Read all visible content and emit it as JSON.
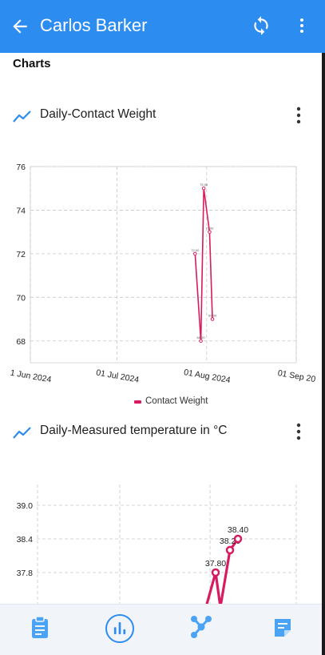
{
  "header": {
    "title": "Carlos Barker",
    "back_icon": "arrow-left-icon",
    "sync_icon": "sync-icon",
    "more_icon": "more-vertical-icon",
    "color": "#2d8cf0"
  },
  "section": {
    "title": "Charts"
  },
  "charts": [
    {
      "title": "Daily-Contact Weight",
      "icon": "trending-line-icon",
      "menu_icon": "more-vertical-icon"
    },
    {
      "title": "Daily-Measured temperature in °C",
      "icon": "trending-line-icon",
      "menu_icon": "more-vertical-icon"
    }
  ],
  "chart_data": [
    {
      "type": "line",
      "x": [
        "2024-07-28",
        "2024-07-30",
        "2024-07-31",
        "2024-08-02",
        "2024-08-03"
      ],
      "x_tick_labels": [
        "1 Jun 2024",
        "01 Jul 2024",
        "01 Aug 2024",
        "01 Sep 20"
      ],
      "y_ticks": [
        68,
        70,
        72,
        74,
        76
      ],
      "ylim": [
        67,
        76
      ],
      "grid": true,
      "legend": "bottom-center",
      "series": [
        {
          "name": "Contact Weight",
          "color": "#d81b60",
          "values": [
            72.0,
            68.0,
            75.0,
            73.0,
            69.0
          ],
          "labels": [
            "72.00",
            "68.00",
            "75.00",
            "73.00",
            "69.00"
          ]
        }
      ]
    },
    {
      "type": "line",
      "y_ticks": [
        37.8,
        38.4,
        39.0
      ],
      "grid": true,
      "series": [
        {
          "color": "#d81b60",
          "values": [
            37.8,
            38.2,
            38.4
          ],
          "labels": [
            "37.80",
            "38.20",
            "38.40"
          ]
        }
      ]
    }
  ],
  "bottom_nav": {
    "items": [
      {
        "icon": "clipboard-icon",
        "active": false
      },
      {
        "icon": "bar-chart-icon",
        "active": true
      },
      {
        "icon": "network-icon",
        "active": false
      },
      {
        "icon": "notes-icon",
        "active": false
      }
    ],
    "active_color": "#2d8cf0"
  }
}
